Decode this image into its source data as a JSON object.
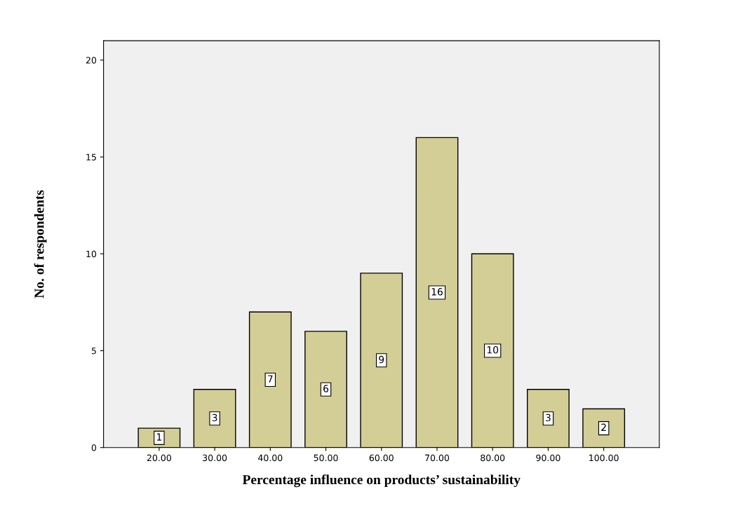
{
  "chart_data": {
    "type": "bar",
    "categories": [
      "20.00",
      "30.00",
      "40.00",
      "50.00",
      "60.00",
      "70.00",
      "80.00",
      "90.00",
      "100.00"
    ],
    "values": [
      1,
      3,
      7,
      6,
      9,
      16,
      10,
      3,
      2
    ],
    "color": "#d3ce96",
    "xlabel": "Percentage influence on products’ sustainability",
    "ylabel": "No. of respondents",
    "ylim": [
      0,
      21
    ],
    "yticks": [
      0,
      5,
      10,
      15,
      20
    ],
    "data_labels": true,
    "grid": false
  }
}
